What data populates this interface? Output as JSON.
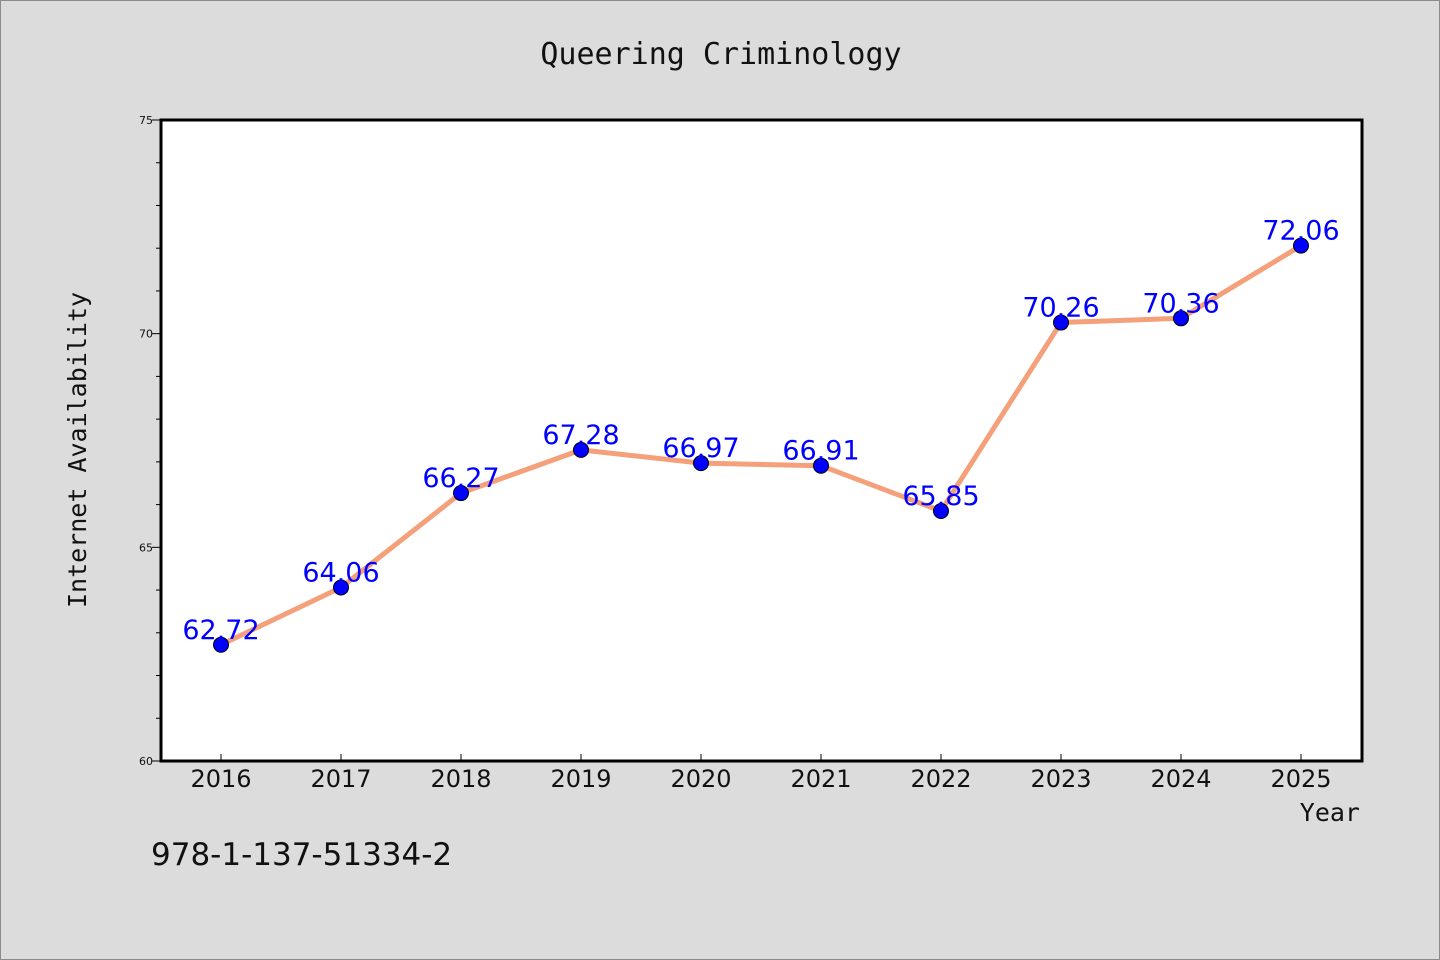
{
  "chart_data": {
    "type": "line",
    "title": "Queering Criminology",
    "xlabel": "Year",
    "ylabel": "Internet Availability",
    "categories": [
      "2016",
      "2017",
      "2018",
      "2019",
      "2020",
      "2021",
      "2022",
      "2023",
      "2024",
      "2025"
    ],
    "series": [
      {
        "values": [
          62.72,
          64.06,
          66.27,
          67.28,
          66.97,
          66.91,
          65.85,
          70.26,
          70.36,
          72.06
        ],
        "labels": [
          "62.72",
          "64.06",
          "66.27",
          "67.28",
          "66.97",
          "66.91",
          "65.85",
          "70.26",
          "70.36",
          "72.06"
        ],
        "line_color": "#f4a07a",
        "marker_color": "#0000ff"
      }
    ],
    "ylim": [
      60,
      75
    ],
    "yticks": [
      "60",
      "65",
      "70",
      "75"
    ],
    "grid": false,
    "legend": "none"
  },
  "footnote": "978-1-137-51334-2",
  "colors": {
    "background": "#dcdcdc",
    "plot_background": "#ffffff",
    "line": "#f4a07a",
    "marker": "#0000ff",
    "data_label": "#0000ff"
  }
}
